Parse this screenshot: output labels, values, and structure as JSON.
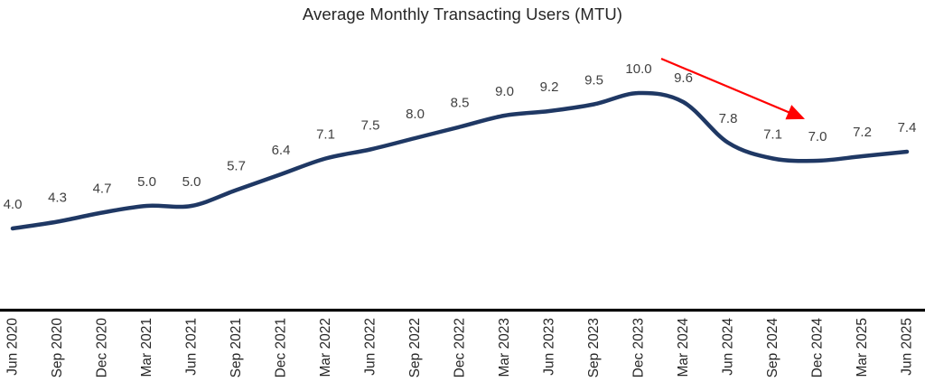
{
  "chart_data": {
    "type": "line",
    "title": "Average Monthly Transacting Users (MTU)",
    "categories": [
      "Jun 2020",
      "Sep 2020",
      "Dec 2020",
      "Mar 2021",
      "Jun 2021",
      "Sep 2021",
      "Dec 2021",
      "Mar 2022",
      "Jun 2022",
      "Sep 2022",
      "Dec 2022",
      "Mar 2023",
      "Jun 2023",
      "Sep 2023",
      "Dec 2023",
      "Mar 2024",
      "Jun 2024",
      "Sep 2024",
      "Dec 2024",
      "Mar 2025",
      "Jun 2025"
    ],
    "values": [
      4.0,
      4.3,
      4.7,
      5.0,
      5.0,
      5.7,
      6.4,
      7.1,
      7.5,
      8.0,
      8.5,
      9.0,
      9.2,
      9.5,
      10.0,
      9.6,
      7.8,
      7.1,
      7.0,
      7.2,
      7.4
    ],
    "value_decimals": 1,
    "smooth": true,
    "show_data_labels": true,
    "legend": "none",
    "y_axis_visible": false,
    "x_axis": {
      "position": "bottom",
      "tick_rotation_degrees": 90
    },
    "line_color": "#1F3864",
    "data_label_color": "#404040",
    "tick_label_color": "#262626",
    "axis_color": "#000000",
    "background_color": "#FFFFFF",
    "annotation": {
      "type": "arrow",
      "color": "#FF0000",
      "from_category": "Dec 2023",
      "to_category": "Dec 2024",
      "direction": "down-right"
    }
  }
}
